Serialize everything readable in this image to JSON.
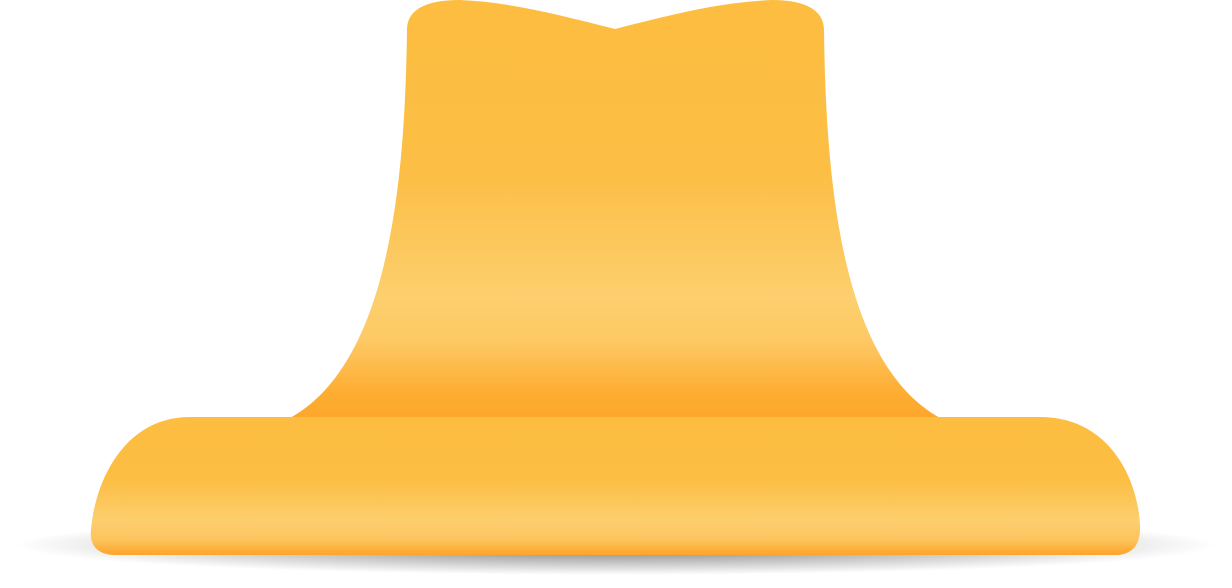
{
  "illustration": {
    "subject": "yellow-hat",
    "colors": {
      "background": "#ffffff",
      "hat_light": "#fdd27a",
      "hat_mid": "#fcbd40",
      "hat_dark": "#fda82a",
      "shadow": "#8a8a8a"
    }
  }
}
